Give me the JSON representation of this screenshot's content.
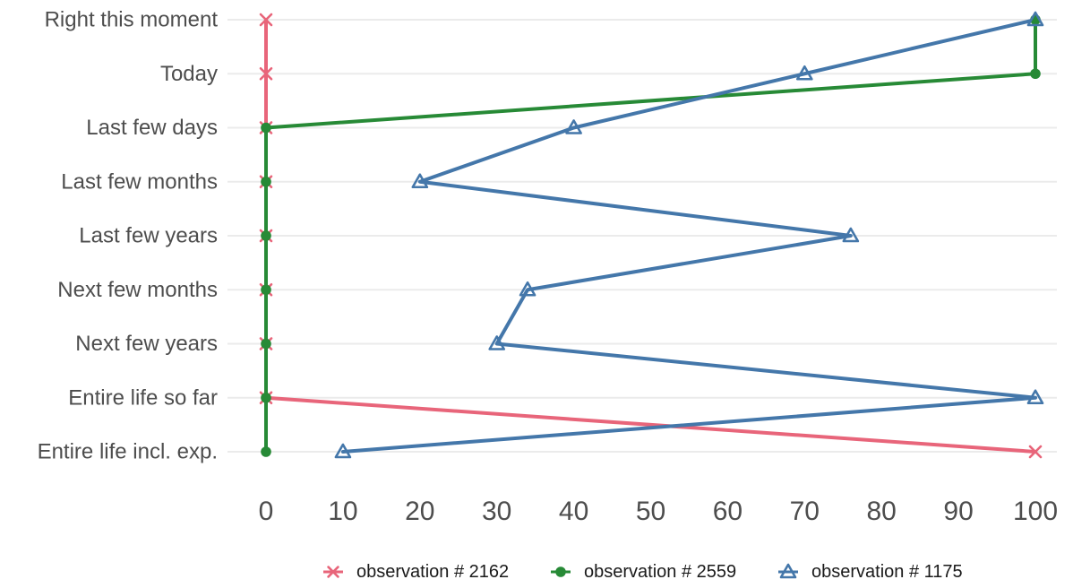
{
  "chart_data": {
    "type": "line",
    "orientation": "horizontal",
    "categories": [
      "Right this moment",
      "Today",
      "Last few days",
      "Last few months",
      "Last few years",
      "Next few months",
      "Next few years",
      "Entire life so far",
      "Entire life incl. exp."
    ],
    "xlim": [
      0,
      100
    ],
    "xticks": [
      0,
      10,
      20,
      30,
      40,
      50,
      60,
      70,
      80,
      90,
      100
    ],
    "grid": true,
    "legend_position": "bottom",
    "series": [
      {
        "name": "observation # 2162",
        "color": "#e8657a",
        "marker": "x",
        "values": [
          0,
          0,
          0,
          0,
          0,
          0,
          0,
          0,
          100
        ]
      },
      {
        "name": "observation # 2559",
        "color": "#278a36",
        "marker": "dot",
        "values": [
          100,
          100,
          0,
          0,
          0,
          0,
          0,
          0,
          0
        ]
      },
      {
        "name": "observation # 1175",
        "color": "#4477aa",
        "marker": "triangle",
        "values": [
          100,
          70,
          40,
          20,
          76,
          34,
          30,
          100,
          10
        ]
      }
    ]
  }
}
